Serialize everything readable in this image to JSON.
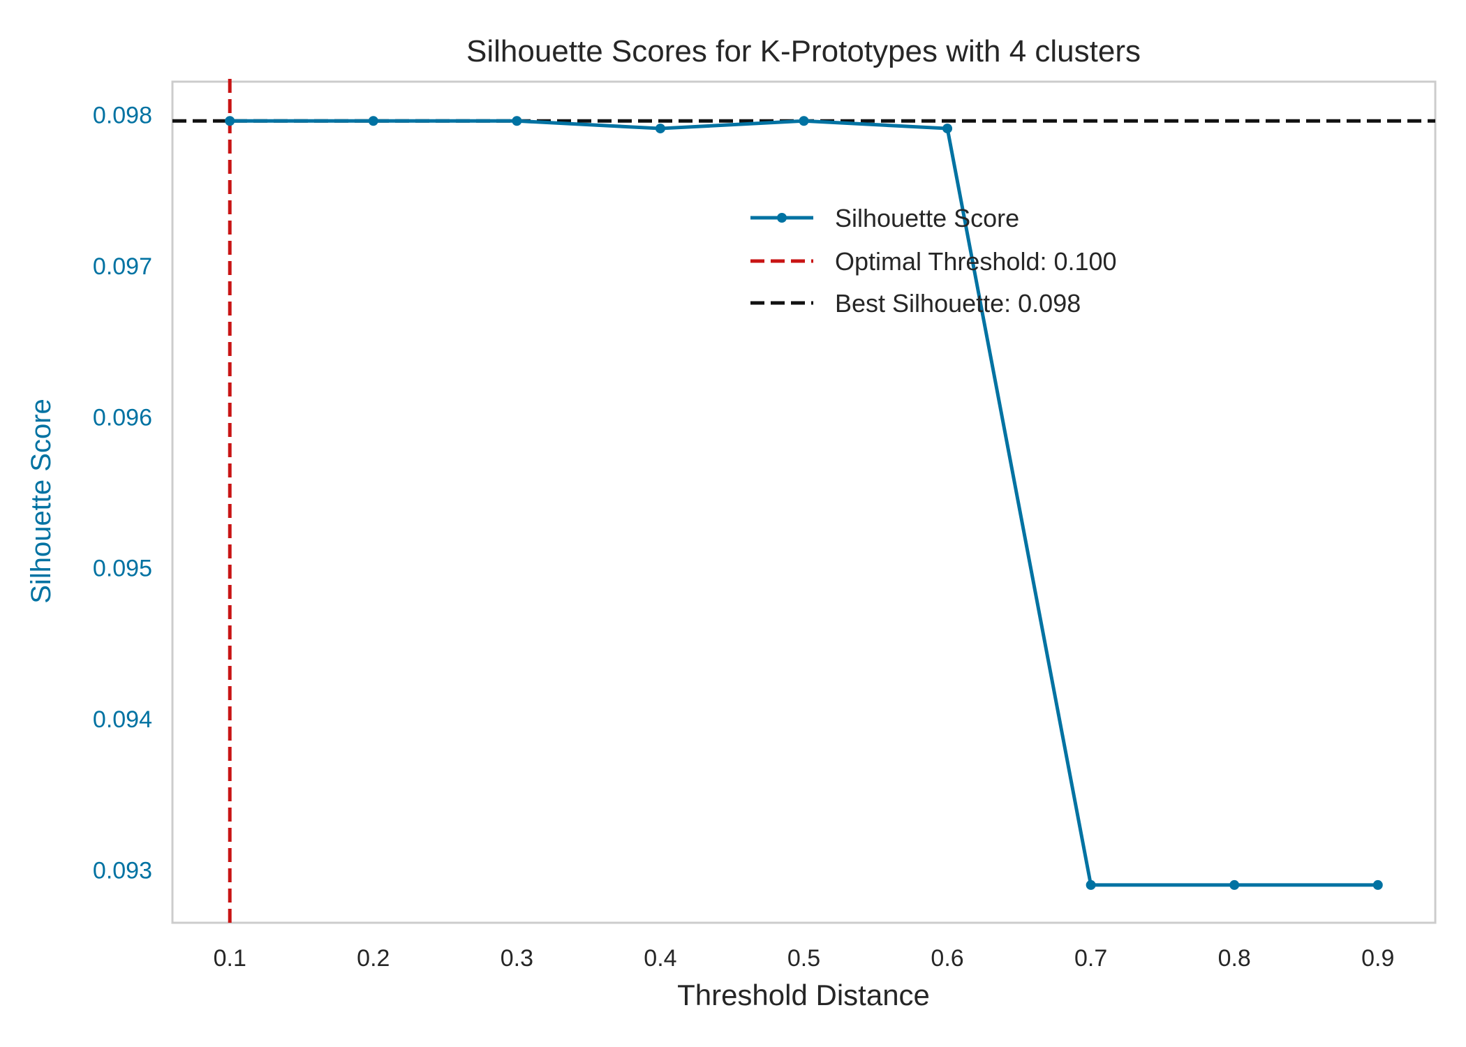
{
  "chart_data": {
    "type": "line",
    "title": "Silhouette Scores for K-Prototypes with 4 clusters",
    "xlabel": "Threshold Distance",
    "ylabel": "Silhouette Score",
    "x": [
      0.1,
      0.2,
      0.3,
      0.4,
      0.5,
      0.6,
      0.7,
      0.8,
      0.9
    ],
    "x_ticks": [
      "0.1",
      "0.2",
      "0.3",
      "0.4",
      "0.5",
      "0.6",
      "0.7",
      "0.8",
      "0.9"
    ],
    "y_ticks": [
      "0.093",
      "0.094",
      "0.095",
      "0.096",
      "0.097",
      "0.098"
    ],
    "xlim": [
      0.06,
      0.94
    ],
    "ylim": [
      0.09265,
      0.09822
    ],
    "grid": false,
    "legend_position": "upper-right",
    "series": [
      {
        "name": "Silhouette Score",
        "color": "#0072a2",
        "marker": "circle",
        "values": [
          0.09796,
          0.09796,
          0.09796,
          0.09791,
          0.09796,
          0.09791,
          0.0929,
          0.0929,
          0.0929
        ]
      }
    ],
    "reference_lines": [
      {
        "orientation": "vertical",
        "value": 0.1,
        "label": "Optimal Threshold: 0.100",
        "color": "#c81414",
        "style": "dashed"
      },
      {
        "orientation": "horizontal",
        "value": 0.09796,
        "label": "Best Silhouette: 0.098",
        "color": "#111111",
        "style": "dashed"
      }
    ],
    "colors": {
      "axis_spine": "#cccccc",
      "ytick_color": "#0072a2",
      "ylabel_color": "#0072a2"
    }
  }
}
